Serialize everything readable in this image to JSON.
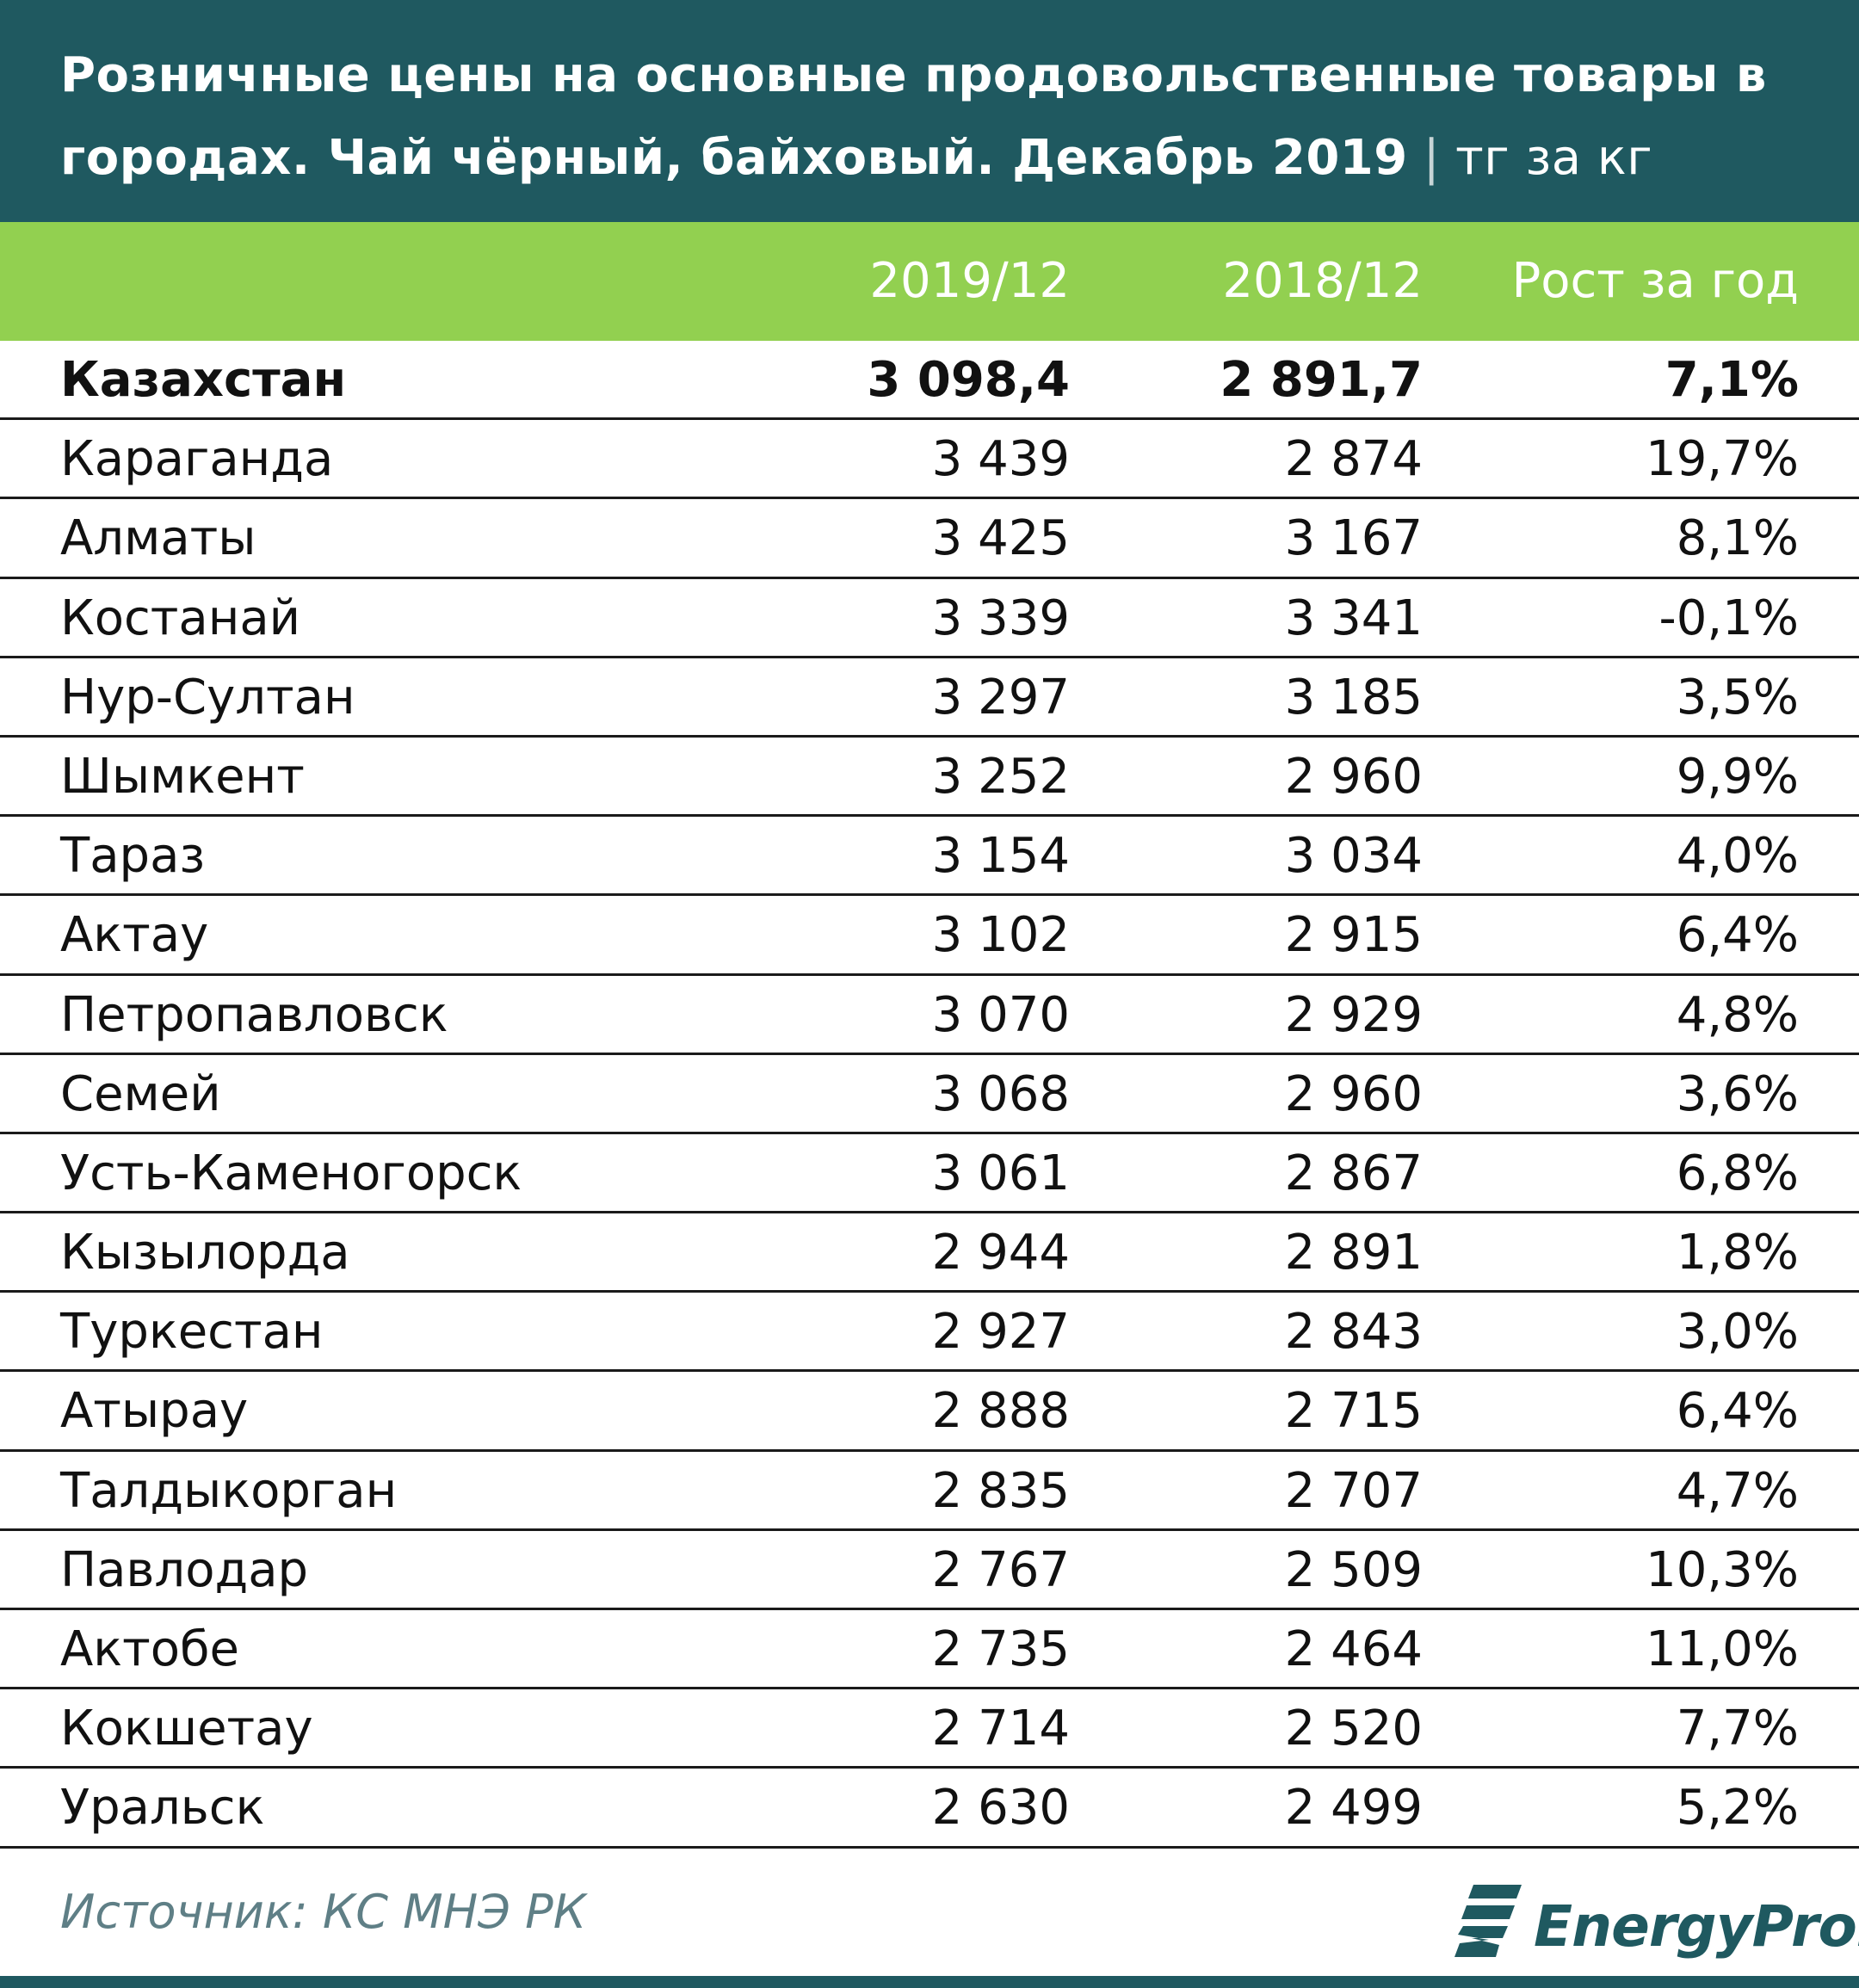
{
  "title": {
    "main": "Розничные цены на основные продовольственные товары в городах. Чай чёрный, байховый. Декабрь 2019",
    "separator": "|",
    "unit": "тг за кг"
  },
  "columns": [
    "2019/12",
    "2018/12",
    "Рост за год"
  ],
  "chart_data": {
    "type": "table",
    "title": "Розничные цены на основные продовольственные товары в городах. Чай чёрный, байховый. Декабрь 2019",
    "unit": "тг за кг",
    "columns": [
      "2019/12",
      "2018/12",
      "Рост за год"
    ],
    "rows": [
      {
        "name": "Казахстан",
        "v2019": "3 098,4",
        "v2018": "2 891,7",
        "growth": "7,1%"
      },
      {
        "name": "Караганда",
        "v2019": "3 439",
        "v2018": "2 874",
        "growth": "19,7%"
      },
      {
        "name": "Алматы",
        "v2019": "3 425",
        "v2018": "3 167",
        "growth": "8,1%"
      },
      {
        "name": "Костанай",
        "v2019": "3 339",
        "v2018": "3 341",
        "growth": "-0,1%"
      },
      {
        "name": "Нур-Султан",
        "v2019": "3 297",
        "v2018": "3 185",
        "growth": "3,5%"
      },
      {
        "name": "Шымкент",
        "v2019": "3 252",
        "v2018": "2 960",
        "growth": "9,9%"
      },
      {
        "name": "Тараз",
        "v2019": "3 154",
        "v2018": "3 034",
        "growth": "4,0%"
      },
      {
        "name": "Актау",
        "v2019": "3 102",
        "v2018": "2 915",
        "growth": "6,4%"
      },
      {
        "name": "Петропавловск",
        "v2019": "3 070",
        "v2018": "2 929",
        "growth": "4,8%"
      },
      {
        "name": "Семей",
        "v2019": "3 068",
        "v2018": "2 960",
        "growth": "3,6%"
      },
      {
        "name": "Усть-Каменогорск",
        "v2019": "3 061",
        "v2018": "2 867",
        "growth": "6,8%"
      },
      {
        "name": "Кызылорда",
        "v2019": "2 944",
        "v2018": "2 891",
        "growth": "1,8%"
      },
      {
        "name": "Туркестан",
        "v2019": "2 927",
        "v2018": "2 843",
        "growth": "3,0%"
      },
      {
        "name": "Атырау",
        "v2019": "2 888",
        "v2018": "2 715",
        "growth": "6,4%"
      },
      {
        "name": "Талдыкорган",
        "v2019": "2 835",
        "v2018": "2 707",
        "growth": "4,7%"
      },
      {
        "name": "Павлодар",
        "v2019": "2 767",
        "v2018": "2 509",
        "growth": "10,3%"
      },
      {
        "name": "Актобе",
        "v2019": "2 735",
        "v2018": "2 464",
        "growth": "11,0%"
      },
      {
        "name": "Кокшетау",
        "v2019": "2 714",
        "v2018": "2 520",
        "growth": "7,7%"
      },
      {
        "name": "Уральск",
        "v2019": "2 630",
        "v2018": "2 499",
        "growth": "5,2%"
      }
    ]
  },
  "footer": {
    "source": "Источник: КС МНЭ РК",
    "logo_text": "EnergyProm"
  },
  "colors": {
    "title_bg": "#1f5960",
    "header_bg": "#92d050",
    "source_text": "#5f7f86"
  },
  "icons": {
    "logo": "energyprom-logo-icon"
  }
}
